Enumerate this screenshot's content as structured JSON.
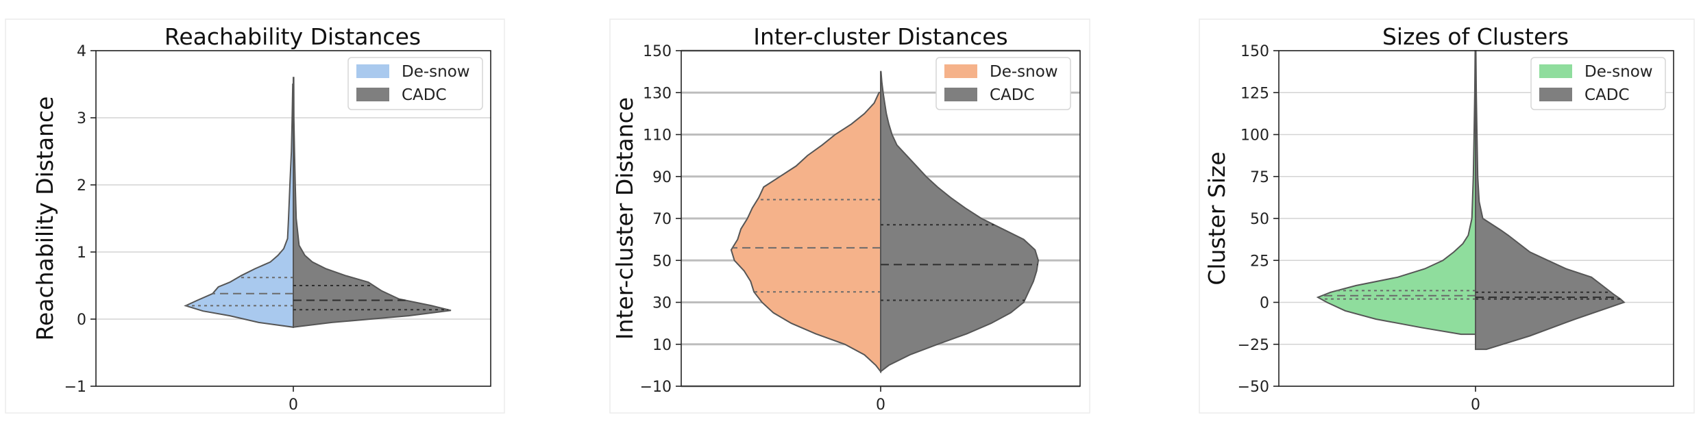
{
  "chart_data": [
    {
      "type": "violin",
      "title": "Reachability Distances",
      "xlabel": "",
      "ylabel": "Reachability Distance",
      "x_tick_labels": [
        "0"
      ],
      "ylim": [
        -1,
        4
      ],
      "yticks": [
        -1,
        0,
        1,
        2,
        3,
        4
      ],
      "y_tick_labels": [
        "−1",
        "0",
        "1",
        "2",
        "3",
        "4"
      ],
      "grid": "horizontal",
      "legend_position": "upper-right",
      "series": [
        {
          "name": "De-snow",
          "side": "left",
          "color": "#a9c9ee",
          "profile": [
            [
              -0.12,
              0
            ],
            [
              -0.05,
              0.18
            ],
            [
              0.05,
              0.33
            ],
            [
              0.12,
              0.47
            ],
            [
              0.2,
              0.56
            ],
            [
              0.28,
              0.5
            ],
            [
              0.38,
              0.42
            ],
            [
              0.48,
              0.39
            ],
            [
              0.55,
              0.33
            ],
            [
              0.65,
              0.27
            ],
            [
              0.75,
              0.2
            ],
            [
              0.85,
              0.12
            ],
            [
              0.95,
              0.08
            ],
            [
              1.05,
              0.05
            ],
            [
              1.2,
              0.03
            ],
            [
              1.5,
              0.025
            ],
            [
              2,
              0.018
            ],
            [
              2.5,
              0.01
            ],
            [
              3,
              0.006
            ],
            [
              3.5,
              0.003
            ]
          ],
          "quartiles": [
            0.2,
            0.38,
            0.62
          ]
        },
        {
          "name": "CADC",
          "side": "right",
          "color": "#7f7f7f",
          "profile": [
            [
              -0.12,
              0
            ],
            [
              -0.05,
              0.2
            ],
            [
              0.05,
              0.6
            ],
            [
              0.13,
              0.82
            ],
            [
              0.2,
              0.72
            ],
            [
              0.3,
              0.55
            ],
            [
              0.42,
              0.46
            ],
            [
              0.55,
              0.39
            ],
            [
              0.65,
              0.27
            ],
            [
              0.75,
              0.17
            ],
            [
              0.85,
              0.1
            ],
            [
              0.95,
              0.06
            ],
            [
              1.1,
              0.03
            ],
            [
              1.5,
              0.015
            ],
            [
              2,
              0.01
            ],
            [
              2.5,
              0.006
            ],
            [
              3,
              0.003
            ],
            [
              3.6,
              0.002
            ]
          ],
          "quartiles": [
            0.14,
            0.28,
            0.5
          ]
        }
      ]
    },
    {
      "type": "violin",
      "title": "Inter-cluster Distances",
      "xlabel": "",
      "ylabel": "Inter-cluster Distance",
      "x_tick_labels": [
        "0"
      ],
      "ylim": [
        -10,
        150
      ],
      "yticks": [
        -10,
        10,
        30,
        50,
        70,
        90,
        110,
        130,
        150
      ],
      "y_tick_labels": [
        "−10",
        "10",
        "30",
        "50",
        "70",
        "90",
        "110",
        "130",
        "150"
      ],
      "grid": "horizontal",
      "legend_position": "upper-right",
      "series": [
        {
          "name": "De-snow",
          "side": "left",
          "color": "#f5b28a",
          "profile": [
            [
              -3,
              0
            ],
            [
              0,
              0.03
            ],
            [
              5,
              0.1
            ],
            [
              10,
              0.22
            ],
            [
              15,
              0.4
            ],
            [
              20,
              0.55
            ],
            [
              25,
              0.66
            ],
            [
              30,
              0.73
            ],
            [
              35,
              0.78
            ],
            [
              40,
              0.8
            ],
            [
              45,
              0.84
            ],
            [
              50,
              0.9
            ],
            [
              55,
              0.92
            ],
            [
              60,
              0.88
            ],
            [
              65,
              0.86
            ],
            [
              70,
              0.82
            ],
            [
              75,
              0.79
            ],
            [
              80,
              0.75
            ],
            [
              85,
              0.72
            ],
            [
              90,
              0.62
            ],
            [
              95,
              0.52
            ],
            [
              100,
              0.45
            ],
            [
              105,
              0.36
            ],
            [
              110,
              0.28
            ],
            [
              115,
              0.18
            ],
            [
              120,
              0.1
            ],
            [
              125,
              0.04
            ],
            [
              130,
              0.01
            ]
          ],
          "quartiles": [
            35,
            56,
            79
          ]
        },
        {
          "name": "CADC",
          "side": "right",
          "color": "#7f7f7f",
          "profile": [
            [
              -3,
              0
            ],
            [
              0,
              0.05
            ],
            [
              5,
              0.18
            ],
            [
              10,
              0.35
            ],
            [
              15,
              0.53
            ],
            [
              20,
              0.68
            ],
            [
              25,
              0.8
            ],
            [
              30,
              0.88
            ],
            [
              35,
              0.91
            ],
            [
              40,
              0.94
            ],
            [
              45,
              0.96
            ],
            [
              50,
              0.97
            ],
            [
              55,
              0.95
            ],
            [
              60,
              0.88
            ],
            [
              65,
              0.75
            ],
            [
              70,
              0.62
            ],
            [
              75,
              0.52
            ],
            [
              80,
              0.43
            ],
            [
              85,
              0.35
            ],
            [
              90,
              0.28
            ],
            [
              95,
              0.22
            ],
            [
              100,
              0.16
            ],
            [
              105,
              0.1
            ],
            [
              110,
              0.07
            ],
            [
              115,
              0.05
            ],
            [
              120,
              0.035
            ],
            [
              125,
              0.025
            ],
            [
              130,
              0.015
            ],
            [
              135,
              0.007
            ],
            [
              140,
              0.002
            ]
          ],
          "quartiles": [
            31,
            48,
            67
          ]
        }
      ]
    },
    {
      "type": "violin",
      "title": "Sizes of Clusters",
      "xlabel": "",
      "ylabel": "Cluster Size",
      "x_tick_labels": [
        "0"
      ],
      "ylim": [
        -50,
        150
      ],
      "yticks": [
        -50,
        -25,
        0,
        25,
        50,
        75,
        100,
        125,
        150
      ],
      "y_tick_labels": [
        "−50",
        "−25",
        "0",
        "25",
        "50",
        "75",
        "100",
        "125",
        "150"
      ],
      "grid": "horizontal",
      "legend_position": "upper-right",
      "series": [
        {
          "name": "De-snow",
          "side": "left",
          "color": "#8fdd9d",
          "profile": [
            [
              -19,
              0
            ],
            [
              -19,
              0.08
            ],
            [
              -15,
              0.3
            ],
            [
              -10,
              0.55
            ],
            [
              -5,
              0.72
            ],
            [
              0,
              0.82
            ],
            [
              3,
              0.87
            ],
            [
              6,
              0.8
            ],
            [
              10,
              0.66
            ],
            [
              15,
              0.43
            ],
            [
              20,
              0.28
            ],
            [
              25,
              0.18
            ],
            [
              30,
              0.12
            ],
            [
              35,
              0.07
            ],
            [
              40,
              0.04
            ],
            [
              50,
              0.02
            ],
            [
              75,
              0.012
            ],
            [
              100,
              0.008
            ],
            [
              125,
              0.004
            ],
            [
              150,
              0.002
            ]
          ],
          "quartiles": [
            2,
            4,
            7
          ]
        },
        {
          "name": "CADC",
          "side": "right",
          "color": "#7f7f7f",
          "profile": [
            [
              -28,
              0
            ],
            [
              -28,
              0.06
            ],
            [
              -20,
              0.3
            ],
            [
              -10,
              0.55
            ],
            [
              0,
              0.82
            ],
            [
              2,
              0.8
            ],
            [
              5,
              0.76
            ],
            [
              10,
              0.7
            ],
            [
              15,
              0.64
            ],
            [
              20,
              0.5
            ],
            [
              25,
              0.4
            ],
            [
              30,
              0.3
            ],
            [
              40,
              0.18
            ],
            [
              43,
              0.14
            ],
            [
              50,
              0.04
            ],
            [
              60,
              0.02
            ],
            [
              75,
              0.012
            ],
            [
              100,
              0.008
            ],
            [
              125,
              0.004
            ],
            [
              150,
              0.002
            ]
          ],
          "quartiles": [
            2,
            3,
            6
          ]
        }
      ]
    }
  ]
}
